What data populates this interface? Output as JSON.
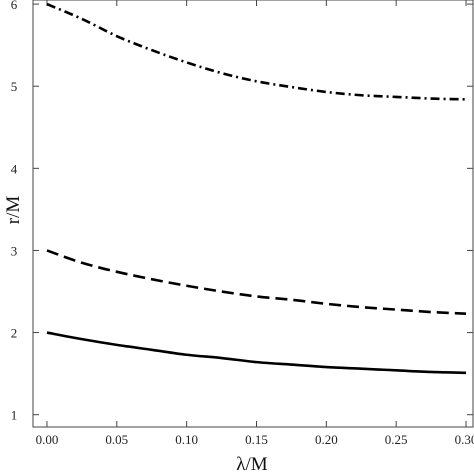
{
  "chart_data": {
    "type": "line",
    "xlabel": "λ/M",
    "ylabel": "r/M",
    "xlim": [
      -0.01,
      0.305
    ],
    "ylim": [
      0.85,
      6.05
    ],
    "x_ticks": [
      {
        "value": 0.0,
        "label": "0.00"
      },
      {
        "value": 0.05,
        "label": "0.05"
      },
      {
        "value": 0.1,
        "label": "0.10"
      },
      {
        "value": 0.15,
        "label": "0.15"
      },
      {
        "value": 0.2,
        "label": "0.20"
      },
      {
        "value": 0.25,
        "label": "0.25"
      },
      {
        "value": 0.3,
        "label": "0.30"
      }
    ],
    "y_ticks": [
      {
        "value": 1,
        "label": "1"
      },
      {
        "value": 2,
        "label": "2"
      },
      {
        "value": 3,
        "label": "3"
      },
      {
        "value": 4,
        "label": "4"
      },
      {
        "value": 5,
        "label": "5"
      },
      {
        "value": 6,
        "label": "6"
      }
    ],
    "grid": false,
    "x": [
      0.0,
      0.025,
      0.05,
      0.075,
      0.1,
      0.125,
      0.15,
      0.175,
      0.2,
      0.225,
      0.25,
      0.275,
      0.3
    ],
    "series": [
      {
        "style": "dash-dot",
        "color": "#000000",
        "values": [
          6.0,
          5.82,
          5.61,
          5.44,
          5.29,
          5.16,
          5.06,
          4.99,
          4.93,
          4.89,
          4.87,
          4.85,
          4.84
        ]
      },
      {
        "style": "dashed",
        "color": "#000000",
        "values": [
          3.0,
          2.85,
          2.74,
          2.65,
          2.57,
          2.5,
          2.44,
          2.4,
          2.35,
          2.31,
          2.28,
          2.25,
          2.23
        ]
      },
      {
        "style": "solid",
        "color": "#000000",
        "values": [
          2.0,
          1.92,
          1.85,
          1.79,
          1.73,
          1.69,
          1.64,
          1.61,
          1.58,
          1.56,
          1.54,
          1.52,
          1.51
        ]
      }
    ]
  }
}
